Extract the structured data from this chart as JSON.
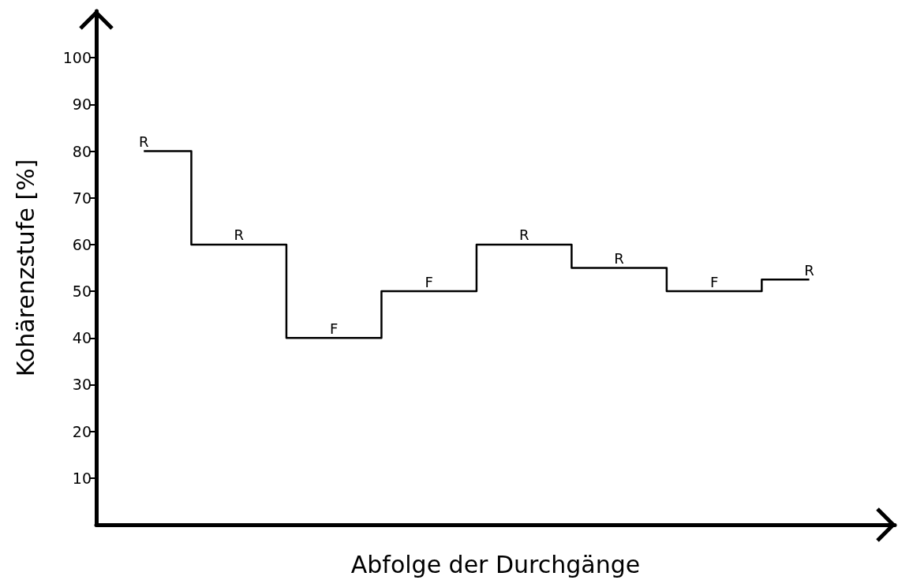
{
  "chart_data": {
    "type": "step",
    "xlabel": "Abfolge der Durchgänge",
    "ylabel": "Kohärenzstufe [%]",
    "categories": [
      null,
      null,
      null,
      null,
      null,
      null,
      null,
      null
    ],
    "series": [
      {
        "color": "#000000",
        "values": [
          80,
          60,
          40,
          50,
          60,
          55,
          50,
          52.5
        ],
        "value_labels": [
          "R",
          "R",
          "F",
          "F",
          "R",
          "R",
          "F",
          "R"
        ]
      }
    ],
    "ylim": [
      0,
      110
    ],
    "yticks": [
      10,
      20,
      30,
      40,
      50,
      60,
      70,
      80,
      90,
      100
    ],
    "grid": false,
    "marker": "none",
    "line_style": "solid"
  }
}
